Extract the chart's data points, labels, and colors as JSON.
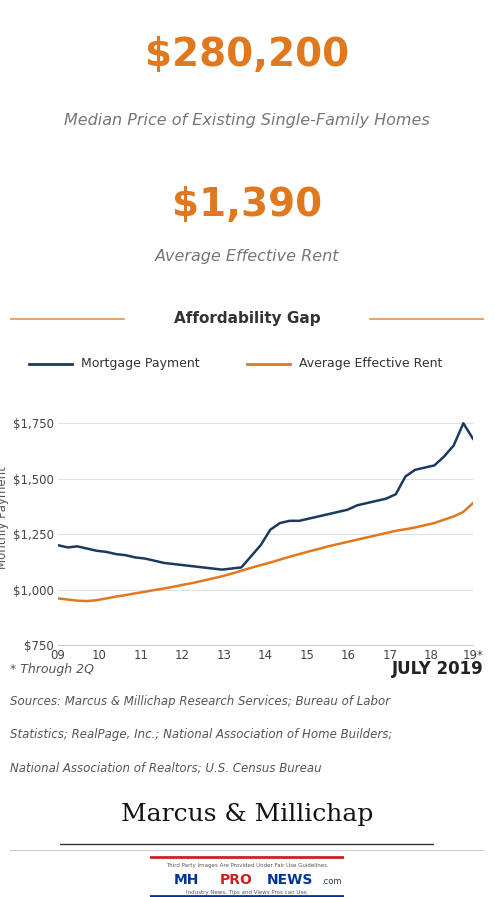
{
  "stat1_value": "$280,200",
  "stat1_label": "Median Price of Existing Single-Family Homes",
  "stat2_value": "$1,390",
  "stat2_label": "Average Effective Rent",
  "chart_title": "Affordability Gap",
  "x_labels": [
    "09",
    "10",
    "11",
    "12",
    "13",
    "14",
    "15",
    "16",
    "17",
    "18",
    "19*"
  ],
  "mortgage_payment": [
    1200,
    1190,
    1195,
    1185,
    1175,
    1170,
    1160,
    1155,
    1145,
    1140,
    1130,
    1120,
    1115,
    1110,
    1105,
    1100,
    1095,
    1090,
    1095,
    1100,
    1150,
    1200,
    1270,
    1300,
    1310,
    1310,
    1320,
    1330,
    1340,
    1350,
    1360,
    1380,
    1390,
    1400,
    1410,
    1430,
    1510,
    1540,
    1550,
    1560,
    1600,
    1650,
    1750,
    1680
  ],
  "avg_effective_rent": [
    960,
    955,
    950,
    948,
    952,
    960,
    968,
    975,
    983,
    990,
    998,
    1005,
    1013,
    1022,
    1030,
    1040,
    1050,
    1060,
    1072,
    1085,
    1098,
    1110,
    1122,
    1135,
    1148,
    1160,
    1172,
    1183,
    1195,
    1205,
    1215,
    1225,
    1235,
    1245,
    1255,
    1265,
    1272,
    1280,
    1290,
    1300,
    1315,
    1330,
    1350,
    1390
  ],
  "mortgage_color": "#1c3a5e",
  "rent_color": "#e07820",
  "orange_color": "#e07820",
  "bg_color_stat": "#efefef",
  "ylim": [
    750,
    1900
  ],
  "yticks": [
    750,
    1000,
    1250,
    1500,
    1750
  ],
  "ytick_labels": [
    "$750",
    "$1,000",
    "$1,250",
    "$1,500",
    "$1,750"
  ],
  "ylabel": "Monthly Payment",
  "footnote": "* Through 2Q",
  "date_label": "JULY 2019",
  "sources_line1": "Sources: Marcus & Millichap Research Services; Bureau of Labor",
  "sources_line2": "Statistics; RealPage, Inc.; National Association of Home Builders;",
  "sources_line3": "National Association of Realtors; U.S. Census Bureau",
  "branding": "Marcus",
  "branding2": "Millichap"
}
